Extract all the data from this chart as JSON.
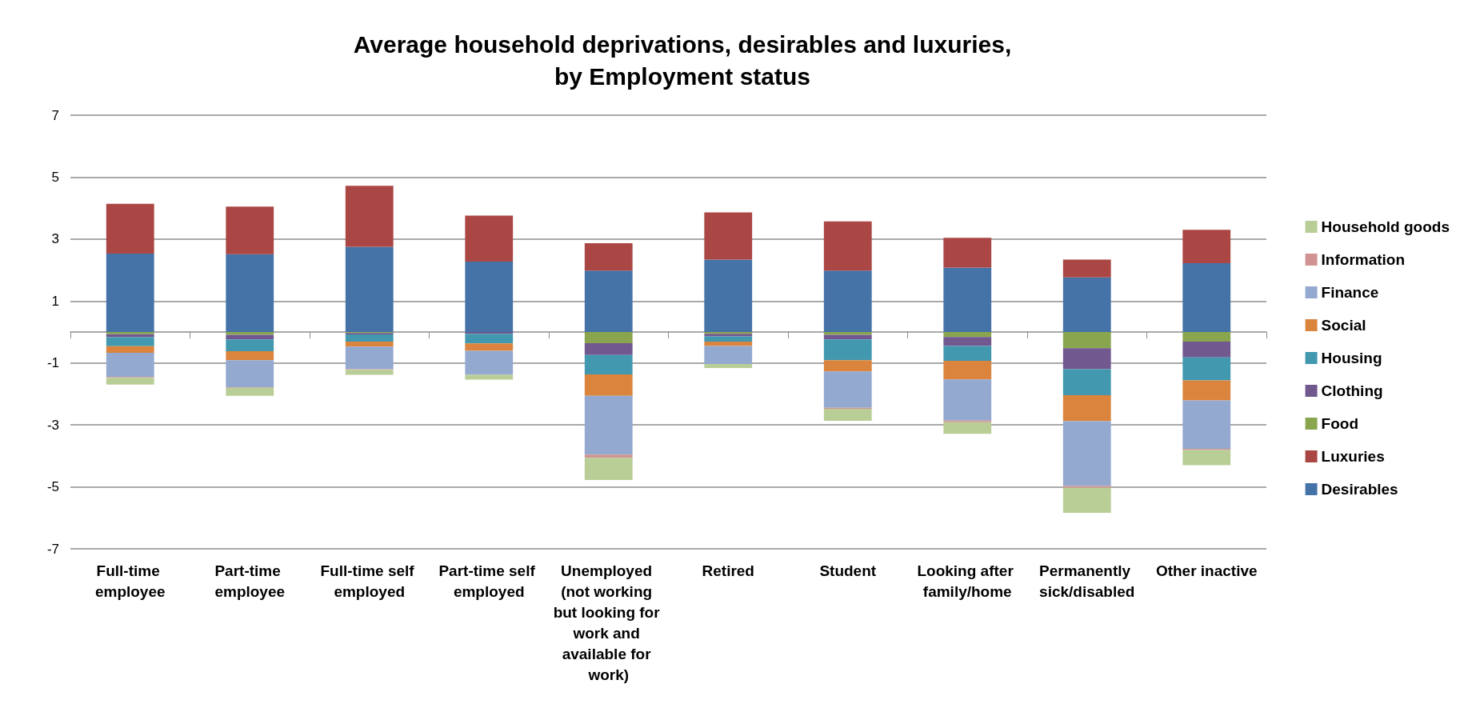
{
  "chart_data": {
    "type": "bar",
    "stacked": true,
    "title": "Average household deprivations, desirables and luxuries,\nby Employment status",
    "categories": [
      "Full-time employee",
      "Part-time employee",
      "Full-time self employed",
      "Part-time self employed",
      "Unemployed (not working but looking for work and available for work)",
      "Retired",
      "Student",
      "Looking after family/home",
      "Permanently sick/disabled",
      "Other inactive"
    ],
    "series": [
      {
        "name": "Desirables",
        "color": "#4572a7",
        "values": [
          2.53,
          2.51,
          2.75,
          2.27,
          1.98,
          2.34,
          1.98,
          2.08,
          1.76,
          2.22
        ]
      },
      {
        "name": "Luxuries",
        "color": "#aa4643",
        "values": [
          1.61,
          1.54,
          1.97,
          1.49,
          0.89,
          1.52,
          1.59,
          0.96,
          0.58,
          1.08
        ]
      },
      {
        "name": "Food",
        "color": "#89a54e",
        "values": [
          -0.07,
          -0.09,
          -0.03,
          null,
          -0.36,
          -0.06,
          -0.09,
          -0.16,
          -0.52,
          -0.31
        ]
      },
      {
        "name": "Clothing",
        "color": "#71588f",
        "values": [
          -0.1,
          -0.15,
          -0.05,
          -0.06,
          -0.38,
          -0.08,
          -0.15,
          -0.29,
          -0.68,
          -0.51
        ]
      },
      {
        "name": "Housing",
        "color": "#4198af",
        "values": [
          -0.29,
          -0.38,
          -0.23,
          -0.31,
          -0.63,
          -0.17,
          -0.67,
          -0.48,
          -0.84,
          -0.74
        ]
      },
      {
        "name": "Social",
        "color": "#db843d",
        "values": [
          -0.21,
          -0.29,
          -0.16,
          -0.24,
          -0.69,
          -0.14,
          -0.36,
          -0.6,
          -0.84,
          -0.65
        ]
      },
      {
        "name": "Finance",
        "color": "#93a9cf",
        "values": [
          -0.78,
          -0.87,
          -0.73,
          -0.77,
          -1.9,
          -0.58,
          -1.18,
          -1.33,
          -2.09,
          -1.56
        ]
      },
      {
        "name": "Information",
        "color": "#d19392",
        "values": [
          -0.03,
          -0.02,
          -0.02,
          null,
          -0.1,
          null,
          -0.03,
          -0.05,
          -0.06,
          -0.04
        ]
      },
      {
        "name": "Household goods",
        "color": "#b9cd96",
        "values": [
          -0.22,
          -0.26,
          -0.16,
          -0.16,
          -0.72,
          -0.13,
          -0.39,
          -0.38,
          -0.81,
          -0.49
        ]
      }
    ],
    "ylim": [
      -7,
      7
    ],
    "yticks": [
      -7,
      -5,
      -3,
      -1,
      1,
      3,
      5,
      7
    ],
    "grid": "y",
    "legend": "right"
  }
}
